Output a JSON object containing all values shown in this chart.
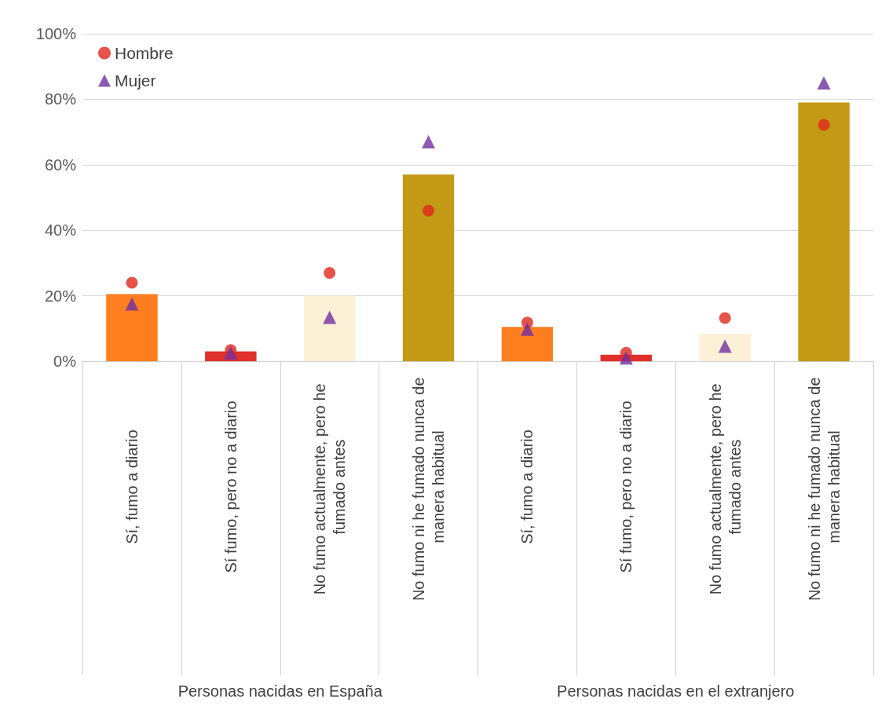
{
  "chart_data": {
    "type": "bar",
    "categories": [
      "Sí, fumo a diario",
      "Sí fumo, pero no a diario",
      "No fumo actualmente, pero he fumado antes",
      "No fumo ni he fumado nunca de manera habitual",
      "Sí, fumo a diario",
      "Sí fumo, pero no a diario",
      "No fumo actualmente, pero he fumado antes",
      "No fumo ni he fumado nunca de manera habitual"
    ],
    "series": [
      {
        "colors": [
          "#fd7f20",
          "#e0302a",
          "#fcf0d6",
          "#c39a16",
          "#fd7f20",
          "#e0302a",
          "#fcf0d6",
          "#c39a16"
        ],
        "values": [
          20.5,
          3,
          20,
          57,
          10.5,
          2,
          8.4,
          79
        ]
      },
      {
        "type": "scatter",
        "name": "Hombre",
        "color": "#e0281e",
        "marker": "circle",
        "values": [
          24,
          3.4,
          27,
          46,
          11.8,
          2.6,
          13.2,
          72.2
        ]
      },
      {
        "type": "scatter",
        "name": "Mujer",
        "color": "#7030a0",
        "marker": "triangle",
        "values": [
          17.5,
          2.6,
          13.4,
          67,
          9.8,
          1,
          4.6,
          85
        ]
      }
    ],
    "ylim": [
      0,
      100
    ],
    "yticks": [
      {
        "value": 0,
        "label": "0%"
      },
      {
        "value": 20,
        "label": "20%"
      },
      {
        "value": 40,
        "label": "40%"
      },
      {
        "value": 60,
        "label": "60%"
      },
      {
        "value": 80,
        "label": "80%"
      },
      {
        "value": 100,
        "label": "100%"
      }
    ],
    "grid": "y",
    "legend": "top left",
    "annotations": [
      "Personas nacidas en España",
      "Personas nacidas en el extranjero"
    ]
  }
}
